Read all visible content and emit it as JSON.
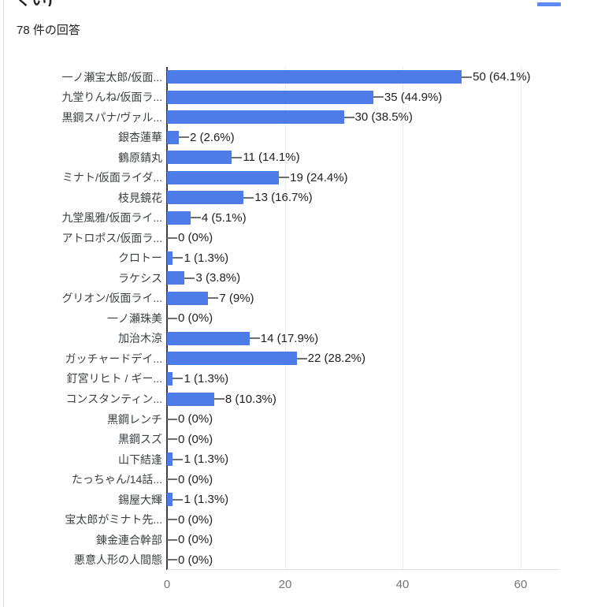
{
  "page": {
    "partial_title": "くい)",
    "responses_label": "78 件の回答",
    "accent_color": "#5b8af5"
  },
  "chart_data": {
    "type": "bar",
    "orientation": "horizontal",
    "title": "",
    "xlabel": "",
    "ylabel": "",
    "xlim": [
      0,
      60
    ],
    "x_ticks": [
      0,
      20,
      40,
      60
    ],
    "grid": true,
    "bar_color": "#4d7ce8",
    "axis_color": "#3c4043",
    "categories": [
      "一ノ瀬宝太郎/仮面...",
      "九堂りんね/仮面ラ...",
      "黒鋼スパナ/ヴァル...",
      "銀杏蓮華",
      "鶴原錆丸",
      "ミナト/仮面ライダ...",
      "枝見鏡花",
      "九堂風雅/仮面ライ...",
      "アトロポス/仮面ラ...",
      "クロトー",
      "ラケシス",
      "グリオン/仮面ライ...",
      "一ノ瀬珠美",
      "加治木涼",
      "ガッチャードデイ...",
      "釘宮リヒト / ギー...",
      "コンスタンティン...",
      "黒鋼レンチ",
      "黒鋼スズ",
      "山下結逢",
      "たっちゃん/14話...",
      "錫屋大輝",
      "宝太郎がミナト先...",
      "錬金連合幹部",
      "悪意人形の人間態"
    ],
    "values": [
      50,
      35,
      30,
      2,
      11,
      19,
      13,
      4,
      0,
      1,
      3,
      7,
      0,
      14,
      22,
      1,
      8,
      0,
      0,
      1,
      0,
      1,
      0,
      0,
      0
    ],
    "value_labels": [
      "50 (64.1%)",
      "35 (44.9%)",
      "30 (38.5%)",
      "2 (2.6%)",
      "11 (14.1%)",
      "19 (24.4%)",
      "13 (16.7%)",
      "4 (5.1%)",
      "0 (0%)",
      "1 (1.3%)",
      "3 (3.8%)",
      "7 (9%)",
      "0 (0%)",
      "14 (17.9%)",
      "22 (28.2%)",
      "1 (1.3%)",
      "8 (10.3%)",
      "0 (0%)",
      "0 (0%)",
      "1 (1.3%)",
      "0 (0%)",
      "1 (1.3%)",
      "0 (0%)",
      "0 (0%)",
      "0 (0%)"
    ]
  }
}
